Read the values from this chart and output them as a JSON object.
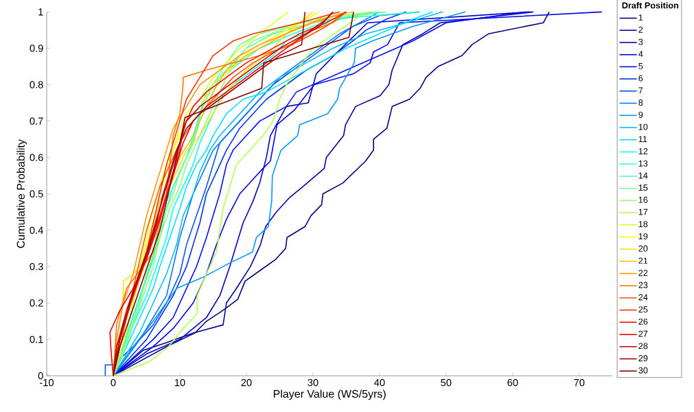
{
  "chart_data": {
    "type": "line",
    "xlabel": "Player Value (WS/5yrs)",
    "ylabel": "Cumulative Probability",
    "legend_title": "Draft Position",
    "legend": "right",
    "marker": "none",
    "line_style": "solid",
    "xlim": [
      -10,
      75
    ],
    "ylim": [
      0,
      1
    ],
    "xticks": [
      -10,
      0,
      10,
      20,
      30,
      40,
      50,
      60,
      70
    ],
    "yticks": [
      0,
      0.1,
      0.2,
      0.3,
      0.4,
      0.5,
      0.6,
      0.7,
      0.8,
      0.9,
      1
    ],
    "series": [
      {
        "name": "1",
        "color": "#000080",
        "x": [
          0,
          4.5,
          7.8,
          12.4,
          14,
          16.5,
          18.7,
          19.8,
          22.1,
          24.4,
          25.9,
          26.1,
          28.8,
          29.7,
          31.3,
          31.5,
          34.5,
          37.9,
          39.1,
          39.1,
          41.1,
          41.9,
          44.5,
          46.1,
          47,
          48.8,
          52.4,
          53.9,
          56.4,
          64.6,
          65.5
        ],
        "values": [
          0,
          0.07,
          0.09,
          0.12,
          0.15,
          0.18,
          0.21,
          0.26,
          0.29,
          0.32,
          0.35,
          0.38,
          0.41,
          0.44,
          0.47,
          0.5,
          0.53,
          0.59,
          0.62,
          0.65,
          0.68,
          0.74,
          0.76,
          0.79,
          0.82,
          0.85,
          0.88,
          0.91,
          0.94,
          0.97,
          1
        ]
      },
      {
        "name": "2",
        "color": "#0000a3",
        "x": [
          0,
          8,
          12.5,
          16.5,
          17,
          18.5,
          20.6,
          22.1,
          22.9,
          24.5,
          26.5,
          28.5,
          31.7,
          32,
          34.6,
          34.9,
          36.4,
          40.1,
          41.4,
          41.9,
          43.5,
          46.5,
          49.1,
          63.1
        ],
        "values": [
          0,
          0.08,
          0.12,
          0.14,
          0.2,
          0.24,
          0.3,
          0.36,
          0.41,
          0.45,
          0.49,
          0.52,
          0.57,
          0.6,
          0.66,
          0.69,
          0.74,
          0.77,
          0.8,
          0.84,
          0.91,
          0.94,
          0.97,
          1
        ]
      },
      {
        "name": "3",
        "color": "#0000c6",
        "x": [
          0,
          5,
          10,
          14,
          16,
          17.5,
          18.5,
          19.5,
          21,
          22,
          23,
          23.6,
          26,
          29.3,
          30.5,
          33.7,
          38.2,
          62.6
        ],
        "values": [
          0,
          0.06,
          0.1,
          0.16,
          0.22,
          0.3,
          0.36,
          0.42,
          0.48,
          0.53,
          0.6,
          0.66,
          0.74,
          0.75,
          0.83,
          0.89,
          0.97,
          1
        ]
      },
      {
        "name": "4",
        "color": "#0000e9",
        "x": [
          0,
          3,
          6,
          9,
          12,
          14,
          15.5,
          17,
          19,
          21,
          22.5,
          23.6,
          24.6,
          27.2,
          30.2,
          36.1,
          38.6,
          39.1,
          41.2,
          43,
          73.4
        ],
        "values": [
          0,
          0.04,
          0.08,
          0.13,
          0.2,
          0.28,
          0.36,
          0.43,
          0.5,
          0.54,
          0.57,
          0.59,
          0.69,
          0.73,
          0.8,
          0.83,
          0.86,
          0.89,
          0.91,
          0.97,
          1
        ]
      },
      {
        "name": "5",
        "color": "#000dff",
        "x": [
          0,
          3,
          6,
          9,
          11,
          12.5,
          14,
          15,
          16,
          17,
          18,
          20,
          22,
          24,
          26,
          27.5,
          30,
          35,
          40,
          45,
          50,
          62
        ],
        "values": [
          0,
          0.05,
          0.1,
          0.16,
          0.24,
          0.3,
          0.38,
          0.44,
          0.5,
          0.58,
          0.62,
          0.66,
          0.7,
          0.72,
          0.74,
          0.78,
          0.8,
          0.84,
          0.88,
          0.92,
          0.97,
          1
        ]
      },
      {
        "name": "6",
        "color": "#0030ff",
        "x": [
          0,
          2,
          5,
          7,
          9,
          11,
          12,
          13,
          14,
          15.5,
          17,
          19,
          21,
          23,
          26,
          29,
          33,
          36,
          38,
          41,
          44
        ],
        "values": [
          0,
          0.04,
          0.1,
          0.16,
          0.22,
          0.3,
          0.36,
          0.42,
          0.5,
          0.56,
          0.62,
          0.68,
          0.72,
          0.76,
          0.8,
          0.84,
          0.88,
          0.92,
          0.95,
          0.98,
          1
        ]
      },
      {
        "name": "7",
        "color": "#0054ff",
        "x": [
          -1.2,
          -1.2,
          0,
          3,
          6,
          8,
          10,
          11,
          12.5,
          14,
          15,
          16,
          18,
          20,
          22,
          24,
          27,
          30,
          33,
          36,
          40,
          46
        ],
        "values": [
          0,
          0.03,
          0.03,
          0.08,
          0.14,
          0.2,
          0.28,
          0.36,
          0.44,
          0.52,
          0.58,
          0.64,
          0.68,
          0.72,
          0.76,
          0.8,
          0.84,
          0.88,
          0.92,
          0.96,
          0.99,
          1
        ]
      },
      {
        "name": "8",
        "color": "#0077ff",
        "x": [
          0,
          2,
          4,
          6,
          8,
          9,
          10,
          11,
          12,
          13.5,
          15,
          17,
          19,
          21,
          23,
          25,
          28,
          31,
          34,
          37,
          40
        ],
        "values": [
          0,
          0.05,
          0.1,
          0.16,
          0.22,
          0.3,
          0.38,
          0.44,
          0.5,
          0.56,
          0.62,
          0.66,
          0.7,
          0.74,
          0.78,
          0.82,
          0.86,
          0.9,
          0.94,
          0.97,
          1
        ]
      },
      {
        "name": "9",
        "color": "#009aff",
        "x": [
          0,
          3,
          6,
          9.5,
          13.4,
          17.5,
          20.9,
          21.5,
          23.3,
          23.8,
          23.9,
          25.2,
          27.7,
          28,
          32.2,
          33.7,
          34,
          36.2,
          36.4,
          38.9,
          45,
          52.9
        ],
        "values": [
          0,
          0.08,
          0.15,
          0.24,
          0.27,
          0.31,
          0.34,
          0.38,
          0.41,
          0.48,
          0.55,
          0.62,
          0.66,
          0.69,
          0.72,
          0.76,
          0.79,
          0.86,
          0.9,
          0.92,
          0.96,
          1
        ]
      },
      {
        "name": "10",
        "color": "#00bdff",
        "x": [
          0,
          2,
          4,
          6,
          8,
          9.5,
          10.5,
          12,
          13,
          14.5,
          16,
          18,
          20,
          22,
          25,
          29,
          33,
          38,
          44,
          49.5
        ],
        "values": [
          0,
          0.06,
          0.12,
          0.2,
          0.28,
          0.36,
          0.44,
          0.5,
          0.56,
          0.62,
          0.66,
          0.7,
          0.74,
          0.78,
          0.82,
          0.86,
          0.9,
          0.94,
          0.97,
          1
        ]
      },
      {
        "name": "11",
        "color": "#00e0ff",
        "x": [
          0,
          2,
          4,
          6,
          7,
          8.5,
          10,
          11,
          12.5,
          14,
          15,
          17,
          19.5,
          23,
          27,
          31,
          35,
          40,
          45,
          48
        ],
        "values": [
          0,
          0.08,
          0.16,
          0.24,
          0.3,
          0.38,
          0.46,
          0.52,
          0.58,
          0.62,
          0.66,
          0.72,
          0.76,
          0.78,
          0.82,
          0.86,
          0.9,
          0.94,
          0.98,
          1
        ]
      },
      {
        "name": "12",
        "color": "#04fffa",
        "x": [
          0,
          1.5,
          3,
          5,
          6.5,
          8,
          9,
          10.5,
          12,
          13,
          14.5,
          16,
          18,
          21,
          24,
          26,
          30,
          34,
          40
        ],
        "values": [
          0,
          0.06,
          0.14,
          0.22,
          0.3,
          0.38,
          0.46,
          0.52,
          0.58,
          0.64,
          0.7,
          0.76,
          0.8,
          0.84,
          0.88,
          0.92,
          0.95,
          0.98,
          1
        ]
      },
      {
        "name": "13",
        "color": "#28ffd7",
        "x": [
          0,
          1.5,
          3,
          4.5,
          6,
          7,
          8,
          9.5,
          11,
          12,
          13,
          14,
          16,
          19,
          22,
          27,
          33,
          46
        ],
        "values": [
          0,
          0.08,
          0.16,
          0.24,
          0.32,
          0.4,
          0.48,
          0.54,
          0.6,
          0.66,
          0.72,
          0.78,
          0.82,
          0.86,
          0.9,
          0.94,
          0.98,
          1
        ]
      },
      {
        "name": "14",
        "color": "#4bffb4",
        "x": [
          0,
          1,
          2.5,
          4,
          5.5,
          7,
          8,
          9,
          10.5,
          12,
          13,
          14.5,
          16,
          18,
          20,
          24,
          30,
          39
        ],
        "values": [
          0,
          0.06,
          0.14,
          0.22,
          0.3,
          0.38,
          0.46,
          0.52,
          0.58,
          0.64,
          0.7,
          0.76,
          0.82,
          0.86,
          0.9,
          0.94,
          0.97,
          1
        ]
      },
      {
        "name": "15",
        "color": "#6eff91",
        "x": [
          0,
          1,
          2.5,
          4,
          5,
          6.5,
          7.5,
          9,
          10,
          11.5,
          12.5,
          13.5,
          15,
          17,
          19,
          22,
          28,
          41
        ],
        "values": [
          0,
          0.05,
          0.12,
          0.2,
          0.28,
          0.36,
          0.44,
          0.5,
          0.56,
          0.62,
          0.68,
          0.74,
          0.8,
          0.86,
          0.91,
          0.94,
          0.97,
          1
        ]
      },
      {
        "name": "16",
        "color": "#91ff6e",
        "x": [
          0,
          1.5,
          3,
          4.5,
          6,
          7,
          8.5,
          10,
          11,
          12.5,
          14,
          15.5,
          17,
          19,
          21,
          25,
          30,
          39
        ],
        "values": [
          0,
          0.06,
          0.14,
          0.22,
          0.3,
          0.38,
          0.46,
          0.52,
          0.58,
          0.64,
          0.7,
          0.76,
          0.82,
          0.88,
          0.92,
          0.95,
          0.98,
          1
        ]
      },
      {
        "name": "17",
        "color": "#b4ff4b",
        "x": [
          0,
          5.5,
          8.3,
          10.5,
          12.6,
          12.6,
          14,
          15.5,
          16,
          16.5,
          17.5,
          18.5,
          20.5,
          22.5,
          24,
          25,
          26,
          28,
          30,
          34,
          38
        ],
        "values": [
          0,
          0.04,
          0.08,
          0.13,
          0.17,
          0.22,
          0.28,
          0.34,
          0.4,
          0.46,
          0.52,
          0.58,
          0.62,
          0.66,
          0.7,
          0.76,
          0.8,
          0.85,
          0.9,
          0.95,
          1
        ]
      },
      {
        "name": "18",
        "color": "#d7ff28",
        "x": [
          0,
          1,
          2,
          3,
          4,
          5,
          6,
          7,
          8,
          9,
          10,
          11,
          13,
          15,
          17,
          19,
          22,
          26.3
        ],
        "values": [
          0,
          0.06,
          0.12,
          0.2,
          0.28,
          0.36,
          0.42,
          0.5,
          0.56,
          0.62,
          0.68,
          0.72,
          0.76,
          0.82,
          0.86,
          0.9,
          0.94,
          1
        ]
      },
      {
        "name": "19",
        "color": "#faff04",
        "x": [
          0,
          0.5,
          1.5,
          3,
          4,
          5,
          6,
          7,
          8,
          9.5,
          11,
          13,
          15,
          18,
          21,
          25,
          28,
          31
        ],
        "values": [
          0,
          0.06,
          0.14,
          0.22,
          0.3,
          0.38,
          0.46,
          0.52,
          0.58,
          0.64,
          0.7,
          0.74,
          0.8,
          0.85,
          0.9,
          0.94,
          0.97,
          1
        ]
      },
      {
        "name": "20",
        "color": "#ffe000",
        "x": [
          0,
          0.5,
          1.5,
          1.5,
          3,
          5,
          6,
          7,
          8,
          9.5,
          11,
          13,
          15,
          17,
          20,
          24,
          26,
          28,
          30
        ],
        "values": [
          0,
          0.1,
          0.2,
          0.26,
          0.28,
          0.32,
          0.38,
          0.44,
          0.5,
          0.56,
          0.62,
          0.66,
          0.72,
          0.78,
          0.84,
          0.9,
          0.94,
          0.97,
          1
        ]
      },
      {
        "name": "21",
        "color": "#ffbd00",
        "x": [
          0,
          1,
          2,
          3.5,
          5,
          6,
          7,
          8.5,
          10,
          12,
          13.5,
          15,
          17,
          20,
          24,
          27,
          31,
          36
        ],
        "values": [
          0,
          0.08,
          0.16,
          0.24,
          0.32,
          0.4,
          0.48,
          0.54,
          0.6,
          0.66,
          0.72,
          0.78,
          0.84,
          0.88,
          0.92,
          0.95,
          0.98,
          1
        ]
      },
      {
        "name": "22",
        "color": "#ff9a00",
        "x": [
          0,
          0.5,
          1.5,
          3,
          4,
          5,
          6,
          7,
          8,
          9,
          11,
          13,
          16,
          19,
          22,
          26,
          30,
          35
        ],
        "values": [
          0,
          0.1,
          0.2,
          0.28,
          0.36,
          0.44,
          0.5,
          0.56,
          0.62,
          0.68,
          0.74,
          0.8,
          0.84,
          0.88,
          0.91,
          0.94,
          0.97,
          1
        ]
      },
      {
        "name": "23",
        "color": "#ff7700",
        "x": [
          0,
          0.5,
          2,
          4,
          6,
          7,
          8,
          8.5,
          9,
          10,
          10.5,
          10.5,
          14,
          18,
          22,
          27,
          30,
          33,
          35
        ],
        "values": [
          0,
          0.14,
          0.24,
          0.29,
          0.34,
          0.42,
          0.5,
          0.58,
          0.66,
          0.72,
          0.8,
          0.82,
          0.84,
          0.86,
          0.88,
          0.91,
          0.95,
          0.97,
          1
        ]
      },
      {
        "name": "24",
        "color": "#ff5400",
        "x": [
          0,
          1,
          2,
          3,
          4,
          5,
          6,
          7,
          8.5,
          10,
          12,
          14,
          16,
          18,
          21,
          24,
          28,
          32,
          35
        ],
        "values": [
          0,
          0.08,
          0.16,
          0.24,
          0.32,
          0.4,
          0.46,
          0.52,
          0.58,
          0.64,
          0.7,
          0.74,
          0.78,
          0.82,
          0.86,
          0.89,
          0.92,
          0.96,
          1
        ]
      },
      {
        "name": "25",
        "color": "#ff3000",
        "x": [
          0,
          0.5,
          2,
          3.5,
          5,
          6,
          7,
          8,
          9,
          10,
          11,
          13,
          15,
          18,
          21,
          28,
          34
        ],
        "values": [
          0,
          0.08,
          0.16,
          0.26,
          0.34,
          0.42,
          0.5,
          0.58,
          0.64,
          0.7,
          0.76,
          0.82,
          0.88,
          0.92,
          0.94,
          0.97,
          1
        ]
      },
      {
        "name": "26",
        "color": "#ff0d00",
        "x": [
          0,
          0.5,
          1.5,
          3,
          4.5,
          6,
          7,
          8,
          9,
          10,
          10.5,
          12,
          14,
          17,
          20,
          24,
          28,
          32,
          35
        ],
        "values": [
          0,
          0.06,
          0.14,
          0.22,
          0.3,
          0.38,
          0.44,
          0.5,
          0.56,
          0.62,
          0.68,
          0.74,
          0.78,
          0.82,
          0.86,
          0.9,
          0.94,
          0.97,
          1
        ]
      },
      {
        "name": "27",
        "color": "#e90000",
        "x": [
          0,
          -0.3,
          -0.5,
          1,
          3,
          5,
          6.5,
          7.5,
          8.5,
          9.5,
          10.5,
          12,
          14,
          17,
          20,
          23,
          26,
          29,
          32,
          33
        ],
        "values": [
          0,
          0.06,
          0.12,
          0.18,
          0.24,
          0.32,
          0.4,
          0.46,
          0.52,
          0.58,
          0.64,
          0.7,
          0.74,
          0.78,
          0.82,
          0.86,
          0.9,
          0.94,
          0.98,
          1
        ]
      },
      {
        "name": "28",
        "color": "#c60000",
        "x": [
          0,
          0.5,
          2,
          3.5,
          5,
          6,
          7,
          8,
          9,
          10,
          11,
          13,
          16,
          19,
          22,
          25,
          28,
          31,
          33
        ],
        "values": [
          0,
          0.08,
          0.18,
          0.26,
          0.34,
          0.4,
          0.46,
          0.52,
          0.58,
          0.64,
          0.7,
          0.74,
          0.78,
          0.82,
          0.86,
          0.9,
          0.93,
          0.96,
          1
        ]
      },
      {
        "name": "29",
        "color": "#a30000",
        "x": [
          0,
          1,
          2.5,
          4,
          5.5,
          6.5,
          7.5,
          8.5,
          9.5,
          11,
          13,
          16,
          19,
          22,
          25,
          28.3,
          28.8
        ],
        "values": [
          0,
          0.1,
          0.2,
          0.28,
          0.36,
          0.42,
          0.5,
          0.56,
          0.62,
          0.68,
          0.72,
          0.76,
          0.8,
          0.84,
          0.88,
          0.91,
          1
        ]
      },
      {
        "name": "30",
        "color": "#800000",
        "x": [
          0,
          1,
          2.5,
          4,
          5.5,
          7,
          8,
          9,
          10,
          10.8,
          22.3,
          22.6,
          35.4,
          36.1
        ],
        "values": [
          0,
          0.08,
          0.16,
          0.24,
          0.32,
          0.4,
          0.48,
          0.56,
          0.64,
          0.71,
          0.79,
          0.86,
          0.93,
          1
        ]
      }
    ]
  }
}
